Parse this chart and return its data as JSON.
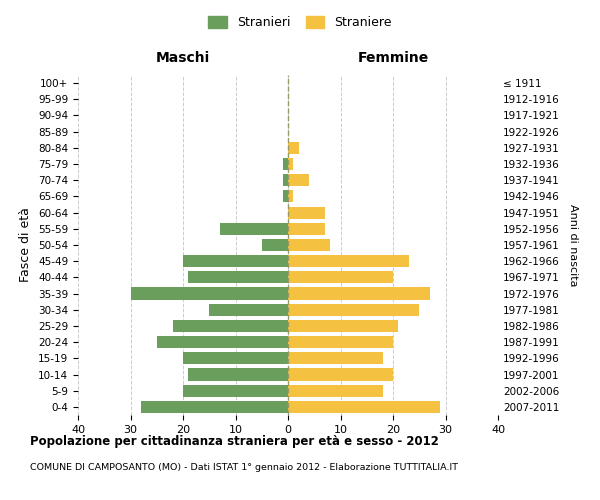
{
  "age_groups": [
    "0-4",
    "5-9",
    "10-14",
    "15-19",
    "20-24",
    "25-29",
    "30-34",
    "35-39",
    "40-44",
    "45-49",
    "50-54",
    "55-59",
    "60-64",
    "65-69",
    "70-74",
    "75-79",
    "80-84",
    "85-89",
    "90-94",
    "95-99",
    "100+"
  ],
  "birth_years": [
    "2007-2011",
    "2002-2006",
    "1997-2001",
    "1992-1996",
    "1987-1991",
    "1982-1986",
    "1977-1981",
    "1972-1976",
    "1967-1971",
    "1962-1966",
    "1957-1961",
    "1952-1956",
    "1947-1951",
    "1942-1946",
    "1937-1941",
    "1932-1936",
    "1927-1931",
    "1922-1926",
    "1917-1921",
    "1912-1916",
    "≤ 1911"
  ],
  "maschi": [
    28,
    20,
    19,
    20,
    25,
    22,
    15,
    30,
    19,
    20,
    5,
    13,
    0,
    1,
    1,
    1,
    0,
    0,
    0,
    0,
    0
  ],
  "femmine": [
    29,
    18,
    20,
    18,
    20,
    21,
    25,
    27,
    20,
    23,
    8,
    7,
    7,
    1,
    4,
    1,
    2,
    0,
    0,
    0,
    0
  ],
  "maschi_color": "#6a9e5c",
  "femmine_color": "#f5c141",
  "background_color": "#ffffff",
  "grid_color": "#cccccc",
  "center_line_color": "#999966",
  "xlim": 40,
  "title": "Popolazione per cittadinanza straniera per età e sesso - 2012",
  "subtitle": "COMUNE DI CAMPOSANTO (MO) - Dati ISTAT 1° gennaio 2012 - Elaborazione TUTTITALIA.IT",
  "maschi_label": "Stranieri",
  "femmine_label": "Straniere",
  "left_header": "Maschi",
  "right_header": "Femmine",
  "ylabel": "Fasce di età",
  "right_ylabel": "Anni di nascita"
}
